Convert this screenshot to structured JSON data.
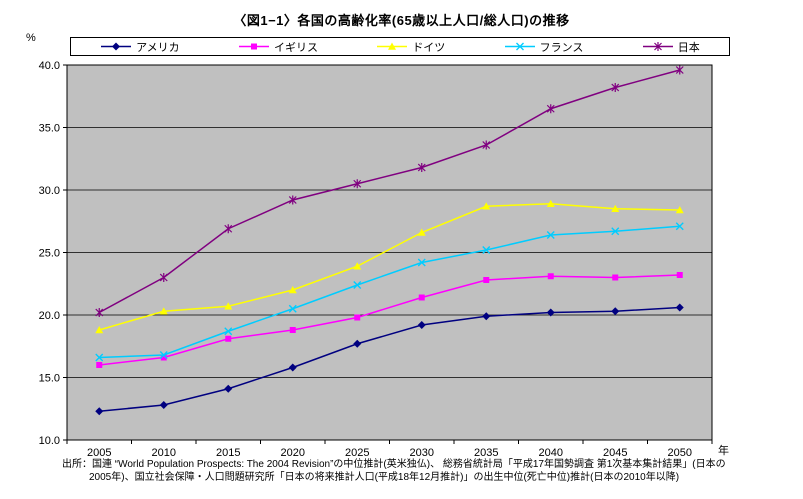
{
  "page": {
    "source": "出所：国連 “World Population Prospects: The 2004 Revision”の中位推計(英米独仏)、 総務省統計局「平成17年国勢調査 第1次基本集計結果」(日本の2005年)、国立社会保障・人口問題研究所「日本の将来推計人口(平成18年12月推計)」の出生中位(死亡中位)推計(日本の2010年以降)"
  },
  "chart_data": {
    "type": "line",
    "title": "〈図1−1〉各国の高齢化率(65歳以上人口/総人口)の推移",
    "xlabel": "年",
    "ylabel": "%",
    "ylim": [
      10.0,
      40.0
    ],
    "ytick_step": 5.0,
    "grid": true,
    "legend_position": "top",
    "plot_bg": "#c0c0c0",
    "categories": [
      2005,
      2010,
      2015,
      2020,
      2025,
      2030,
      2035,
      2040,
      2045,
      2050
    ],
    "series": [
      {
        "key": "usa",
        "name": "アメリカ",
        "color": "#000080",
        "marker": "diamond",
        "values": [
          12.3,
          12.8,
          14.1,
          15.8,
          17.7,
          19.2,
          19.9,
          20.2,
          20.3,
          20.6
        ]
      },
      {
        "key": "uk",
        "name": "イギリス",
        "color": "#ff00ff",
        "marker": "square",
        "values": [
          16.0,
          16.6,
          18.1,
          18.8,
          19.8,
          21.4,
          22.8,
          23.1,
          23.0,
          23.2
        ]
      },
      {
        "key": "germany",
        "name": "ドイツ",
        "color": "#ffff00",
        "marker": "triangle",
        "values": [
          18.8,
          20.3,
          20.7,
          22.0,
          23.9,
          26.6,
          28.7,
          28.9,
          28.5,
          28.4
        ]
      },
      {
        "key": "france",
        "name": "フランス",
        "color": "#00ccff",
        "marker": "x",
        "values": [
          16.6,
          16.8,
          18.7,
          20.5,
          22.4,
          24.2,
          25.2,
          26.4,
          26.7,
          27.1
        ]
      },
      {
        "key": "japan",
        "name": "日本",
        "color": "#800080",
        "marker": "asterisk",
        "values": [
          20.2,
          23.0,
          26.9,
          29.2,
          30.5,
          31.8,
          33.6,
          36.5,
          38.2,
          39.6
        ]
      }
    ]
  }
}
